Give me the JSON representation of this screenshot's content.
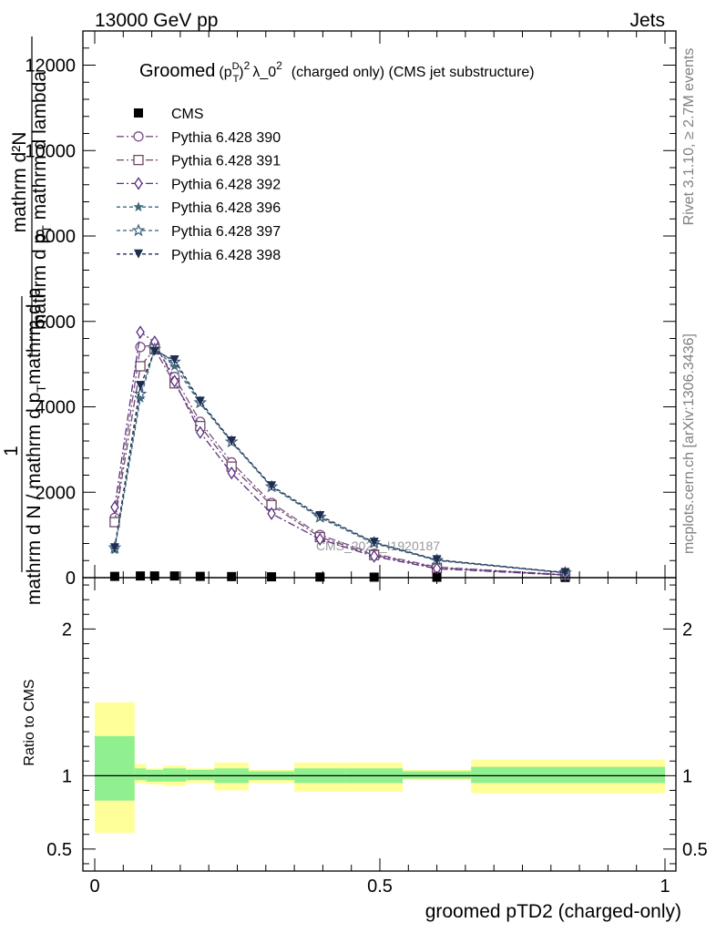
{
  "header": {
    "left": "13000 GeV pp",
    "right": "Jets"
  },
  "side_text": {
    "rivet": "Rivet 3.1.10, ≥ 2.7M events",
    "mcplots": "mcplots.cern.ch [arXiv:1306.3436]"
  },
  "chart_data": {
    "type": "line",
    "title": "Groomed (p_T^D)^2 λ_0^2  (charged only) (CMS jet substructure)",
    "title_parts": {
      "main": "Groomed",
      "p": "(p",
      "sup_D": "D",
      "sub_T": "T",
      "close": ")",
      "sup_2": "2",
      "lam": "λ_0",
      "lam_sup": "2",
      "rest": "(charged only) (CMS jet substructure)"
    },
    "watermark": "CMS_2021_I1920187",
    "xlabel": "groomed pTD2 (charged-only)",
    "ylabel": {
      "num_top": "mathrm d²N",
      "den_top": "mathrm d p",
      "den_top_sub": "T",
      "den_top_rest": " mathrm d lambda",
      "frac_one": "1",
      "den_bottom": "mathrm d N / mathrm d p",
      "den_bottom_sub": "T",
      "den_bottom_rest": "mathrm d p"
    },
    "ratio_ylabel": "Ratio to CMS",
    "xlim": [
      0,
      1
    ],
    "ylim": [
      0,
      12800
    ],
    "ratio_ylim": [
      0.35,
      2.35
    ],
    "x_ticks": [
      "0",
      "0.5",
      "1"
    ],
    "y_ticks": [
      "0",
      "2000",
      "4000",
      "6000",
      "8000",
      "10000",
      "12000"
    ],
    "ratio_ticks": [
      "0.5",
      "1",
      "2"
    ],
    "legend_position": "top-left",
    "x": [
      0.035,
      0.08,
      0.105,
      0.14,
      0.185,
      0.24,
      0.31,
      0.395,
      0.49,
      0.6,
      0.825
    ],
    "series": [
      {
        "name": "CMS",
        "color": "#000000",
        "marker": "square-filled",
        "values": [
          30,
          40,
          40,
          40,
          30,
          25,
          20,
          15,
          12,
          10,
          5
        ]
      },
      {
        "name": "Pythia 6.428 390",
        "color": "#7b4f86",
        "marker": "circle-open",
        "values": [
          1400,
          5400,
          5450,
          4700,
          3650,
          2700,
          1750,
          1000,
          560,
          250,
          70
        ]
      },
      {
        "name": "Pythia 6.428 391",
        "color": "#6e4a66",
        "marker": "square-open",
        "values": [
          1300,
          4950,
          5350,
          4550,
          3550,
          2600,
          1700,
          950,
          530,
          230,
          65
        ]
      },
      {
        "name": "Pythia 6.428 392",
        "color": "#5a2d82",
        "marker": "diamond-open",
        "values": [
          1650,
          5750,
          5520,
          4600,
          3400,
          2450,
          1500,
          900,
          500,
          210,
          60
        ]
      },
      {
        "name": "Pythia 6.428 396",
        "color": "#3d6a7a",
        "marker": "star-filled",
        "values": [
          650,
          4200,
          5350,
          4950,
          4080,
          3170,
          2120,
          1400,
          800,
          400,
          110
        ]
      },
      {
        "name": "Pythia 6.428 397",
        "color": "#3b5c7a",
        "marker": "star-open",
        "values": [
          700,
          4300,
          5350,
          5050,
          4100,
          3180,
          2130,
          1420,
          820,
          410,
          115
        ]
      },
      {
        "name": "Pythia 6.428 398",
        "color": "#1e2d50",
        "marker": "triangle-down-filled",
        "values": [
          700,
          4500,
          5300,
          5100,
          4130,
          3200,
          2150,
          1450,
          830,
          420,
          120
        ]
      }
    ],
    "ratio_bands": [
      {
        "x": [
          0.0,
          0.07
        ],
        "inner": [
          0.83,
          1.27
        ],
        "outer": [
          0.61,
          1.5
        ]
      },
      {
        "x": [
          0.07,
          0.09
        ],
        "inner": [
          0.97,
          1.05
        ],
        "outer": [
          0.95,
          1.08
        ]
      },
      {
        "x": [
          0.09,
          0.12
        ],
        "inner": [
          0.96,
          1.04
        ],
        "outer": [
          0.94,
          1.05
        ]
      },
      {
        "x": [
          0.12,
          0.16
        ],
        "inner": [
          0.96,
          1.05
        ],
        "outer": [
          0.93,
          1.07
        ]
      },
      {
        "x": [
          0.16,
          0.21
        ],
        "inner": [
          0.97,
          1.04
        ],
        "outer": [
          0.95,
          1.05
        ]
      },
      {
        "x": [
          0.21,
          0.27
        ],
        "inner": [
          0.95,
          1.05
        ],
        "outer": [
          0.9,
          1.09
        ]
      },
      {
        "x": [
          0.27,
          0.35
        ],
        "inner": [
          0.97,
          1.03
        ],
        "outer": [
          0.95,
          1.04
        ]
      },
      {
        "x": [
          0.35,
          0.44
        ],
        "inner": [
          0.95,
          1.05
        ],
        "outer": [
          0.89,
          1.09
        ]
      },
      {
        "x": [
          0.44,
          0.54
        ],
        "inner": [
          0.95,
          1.05
        ],
        "outer": [
          0.89,
          1.09
        ]
      },
      {
        "x": [
          0.54,
          0.66
        ],
        "inner": [
          0.98,
          1.03
        ],
        "outer": [
          0.97,
          1.04
        ]
      },
      {
        "x": [
          0.66,
          1.0
        ],
        "inner": [
          0.95,
          1.06
        ],
        "outer": [
          0.88,
          1.11
        ]
      }
    ],
    "band_colors": {
      "inner": "#90f090",
      "outer": "#ffff99"
    }
  }
}
